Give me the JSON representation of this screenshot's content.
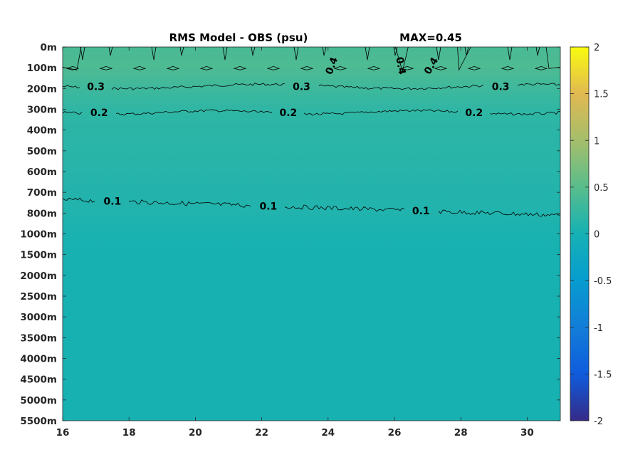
{
  "chart_data": {
    "type": "heatmap",
    "title": "RMS Model - OBS (psu)",
    "max_label": "MAX=0.45",
    "x_ticks": [
      16,
      18,
      20,
      22,
      24,
      26,
      28,
      30
    ],
    "xlim": [
      16,
      31
    ],
    "y_ticks": [
      "0m",
      "100m",
      "200m",
      "300m",
      "400m",
      "500m",
      "600m",
      "700m",
      "800m",
      "1000m",
      "1500m",
      "2000m",
      "2500m",
      "3000m",
      "3500m",
      "4000m",
      "4500m",
      "5000m",
      "5500m"
    ],
    "depths": [
      0,
      100,
      200,
      300,
      400,
      500,
      600,
      700,
      800,
      1000,
      1500,
      2000,
      2500,
      3000,
      3500,
      4000,
      4500,
      5000,
      5500
    ],
    "profile": [
      0.38,
      0.42,
      0.3,
      0.2,
      0.16,
      0.15,
      0.13,
      0.1,
      0.09,
      0.04,
      0.02,
      0.02,
      0.02,
      0.02,
      0.02,
      0.02,
      0.02,
      0.02,
      0.02
    ],
    "colorbar": {
      "min": -2,
      "max": 2,
      "ticks": [
        "2",
        "1.5",
        "1",
        "0.5",
        "0",
        "-0.5",
        "-1",
        "-1.5",
        "-2"
      ],
      "colormap": "parula"
    },
    "contours": [
      {
        "level": "0.3",
        "depth": 190,
        "labels": [
          {
            "text": "0.3",
            "x": 17.0
          },
          {
            "text": "0.3",
            "x": 23.2
          },
          {
            "text": "0.3",
            "x": 29.2
          }
        ]
      },
      {
        "level": "0.2",
        "depth": 315,
        "labels": [
          {
            "text": "0.2",
            "x": 17.1
          },
          {
            "text": "0.2",
            "x": 22.8
          },
          {
            "text": "0.2",
            "x": 28.4
          }
        ]
      },
      {
        "level": "0.1",
        "depth": 735,
        "labels": [
          {
            "text": "0.1",
            "x": 17.5
          },
          {
            "text": "0.1",
            "x": 22.2
          },
          {
            "text": "0.1",
            "x": 26.8
          }
        ]
      },
      {
        "level": "0.4",
        "depth": 90,
        "labels": [
          {
            "text": "0.4",
            "x": 24.1
          },
          {
            "text": "0.4",
            "x": 26.2
          },
          {
            "text": "0.4",
            "x": 27.1
          }
        ]
      }
    ]
  }
}
